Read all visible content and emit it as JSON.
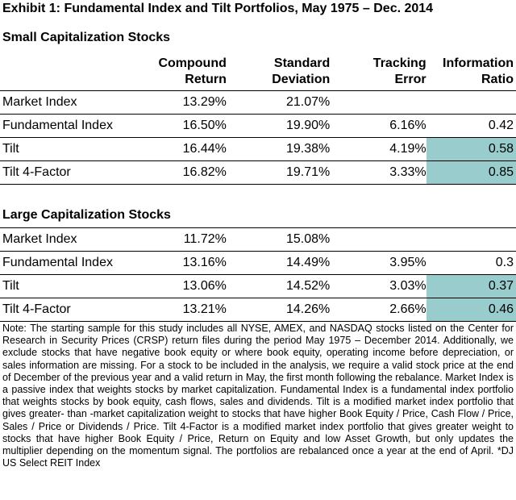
{
  "title": "Exhibit 1: Fundamental Index and Tilt Portfolios, May 1975 – Dec. 2014",
  "headers": {
    "c1": [
      "Compound",
      "Return"
    ],
    "c2": [
      "Standard",
      "Deviation"
    ],
    "c3": [
      "Tracking",
      "Error"
    ],
    "c4": [
      "Information",
      "Ratio"
    ]
  },
  "small": {
    "title": "Small Capitalization Stocks",
    "rows": [
      {
        "name": "Market Index",
        "ret": "13.29%",
        "sd": "21.07%",
        "te": "",
        "ir": ""
      },
      {
        "name": "Fundamental Index",
        "ret": "16.50%",
        "sd": "19.90%",
        "te": "6.16%",
        "ir": "0.42"
      },
      {
        "name": "Tilt",
        "ret": "16.44%",
        "sd": "19.38%",
        "te": "4.19%",
        "ir": "0.58"
      },
      {
        "name": "Tilt 4-Factor",
        "ret": "16.82%",
        "sd": "19.71%",
        "te": "3.33%",
        "ir": "0.85"
      }
    ]
  },
  "large": {
    "title": "Large Capitalization Stocks",
    "rows": [
      {
        "name": "Market Index",
        "ret": "11.72%",
        "sd": "15.08%",
        "te": "",
        "ir": ""
      },
      {
        "name": "Fundamental Index",
        "ret": "13.16%",
        "sd": "14.49%",
        "te": "3.95%",
        "ir": "0.3"
      },
      {
        "name": "Tilt",
        "ret": "13.06%",
        "sd": "14.52%",
        "te": "3.03%",
        "ir": "0.37"
      },
      {
        "name": "Tilt 4-Factor",
        "ret": "13.21%",
        "sd": "14.26%",
        "te": "2.66%",
        "ir": "0.46"
      }
    ]
  },
  "highlight_color": "#99cccc",
  "note": "Note: The starting sample for this study includes all NYSE, AMEX, and NASDAQ stocks listed on the Center for Research in Security Prices (CRSP) return files during the period May 1975 – December 2014. Additionally, we exclude stocks that have negative book equity or where book equity, operating income before depreciation, or sales information are missing. For a stock to be included in the analysis, we require a valid stock price at the end of December of the previous year and a valid return in May, the first month following the rebalance. Market Index is a passive index that weights stocks by market capitalization. Fundamental Index is a fundamental index portfolio that weights stocks by book equity, cash flows, sales and dividends. Tilt is a modified market index portfolio that gives greater- than -market capitalization weight to stocks that have higher Book Equity / Price, Cash Flow / Price, Sales / Price or Dividends / Price. Tilt 4-Factor is a modified market index portfolio that gives greater weight to stocks that have higher Book Equity / Price, Return on Equity and low Asset Growth, but only updates the multiplier depending on the momentum signal. The portfolios are rebalanced once a year at the end of April. *DJ US Select REIT Index"
}
